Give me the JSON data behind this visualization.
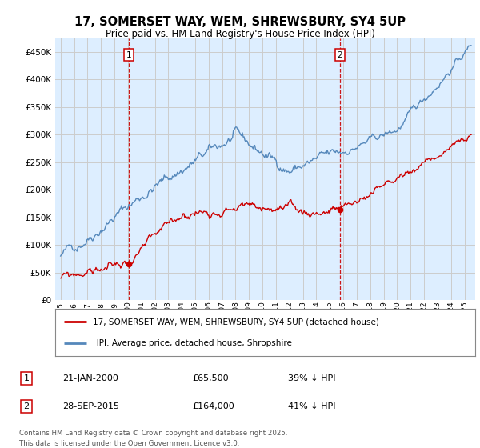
{
  "title": "17, SOMERSET WAY, WEM, SHREWSBURY, SY4 5UP",
  "subtitle": "Price paid vs. HM Land Registry's House Price Index (HPI)",
  "yticks": [
    0,
    50000,
    100000,
    150000,
    200000,
    250000,
    300000,
    350000,
    400000,
    450000
  ],
  "ylim": [
    0,
    475000
  ],
  "legend_line1": "17, SOMERSET WAY, WEM, SHREWSBURY, SY4 5UP (detached house)",
  "legend_line2": "HPI: Average price, detached house, Shropshire",
  "marker1_date": "21-JAN-2000",
  "marker1_price": "£65,500",
  "marker1_hpi": "39% ↓ HPI",
  "marker2_date": "28-SEP-2015",
  "marker2_price": "£164,000",
  "marker2_hpi": "41% ↓ HPI",
  "footnote1": "Contains HM Land Registry data © Crown copyright and database right 2025.",
  "footnote2": "This data is licensed under the Open Government Licence v3.0.",
  "line_color_red": "#cc0000",
  "line_color_blue": "#5588bb",
  "bg_fill_color": "#ddeeff",
  "marker_box_color": "#cc0000",
  "vline_color": "#cc0000",
  "bg_color": "#ffffff",
  "grid_color": "#cccccc",
  "sale_year_1": 2000.06,
  "sale_price_1": 65500,
  "sale_year_2": 2015.75,
  "sale_price_2": 164000
}
